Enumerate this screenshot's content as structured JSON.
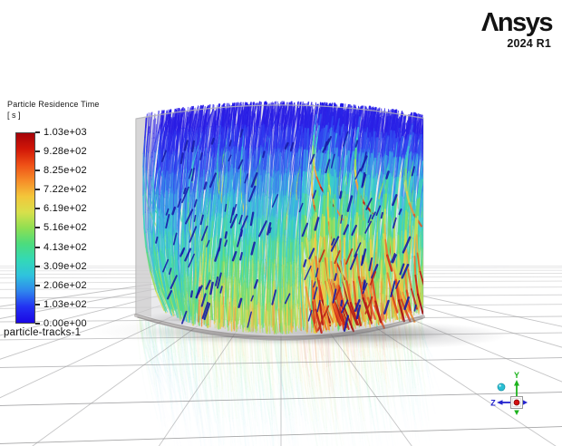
{
  "app": {
    "name": "Ansys",
    "version": "2024 R1"
  },
  "legend": {
    "title": "Particle Residence Time",
    "unit": "[ s ]",
    "labels": [
      "1.03e+03",
      "9.28e+02",
      "8.25e+02",
      "7.22e+02",
      "6.19e+02",
      "5.16e+02",
      "4.13e+02",
      "3.09e+02",
      "2.06e+02",
      "1.03e+02",
      "0.00e+00"
    ],
    "object_name": "particle-tracks-1",
    "colorbar_colors_top_to_bottom": [
      "#a50309",
      "#d11607",
      "#ef5016",
      "#f68c28",
      "#f3c63a",
      "#d8e04b",
      "#8fdf52",
      "#4cdc7d",
      "#33d9b6",
      "#2fc3dd",
      "#2f86ed",
      "#2331f2",
      "#1b07e4"
    ]
  },
  "scene": {
    "field": "Particle Residence Time",
    "units": "s",
    "object_name": "particle-tracks-1",
    "min_value": "0.00e+00",
    "max_value": "1.03e+03"
  },
  "triad": {
    "y_label": "Y",
    "z_label": "Z",
    "x_axis_color": "#d40f0f",
    "y_axis_color": "#1db31d",
    "z_axis_color": "#2424cf",
    "marker_color": "#29bfd4"
  }
}
